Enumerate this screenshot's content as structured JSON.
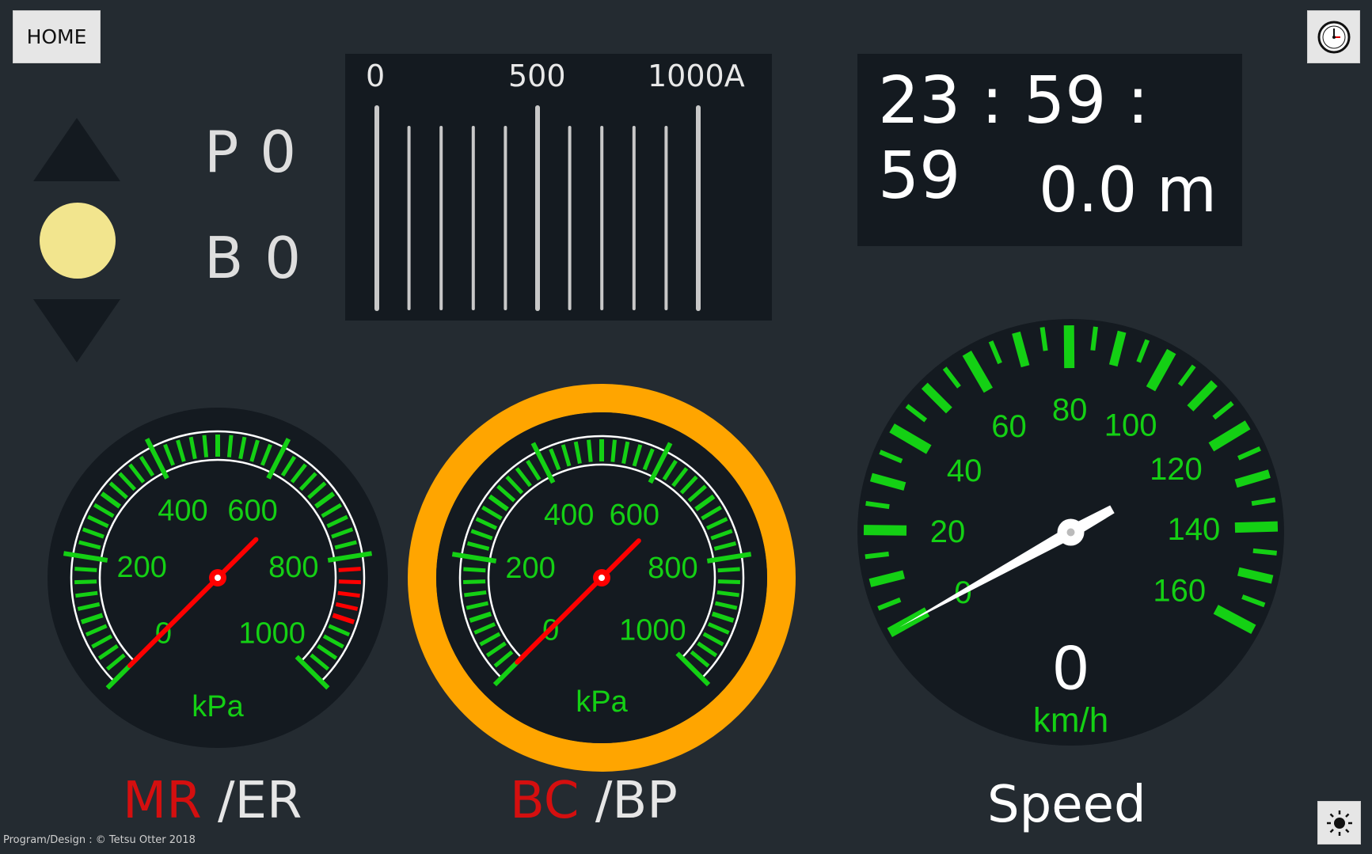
{
  "header": {
    "home_label": "HOME"
  },
  "notch": {
    "power": "P 0",
    "brake": "B 0"
  },
  "ammeter": {
    "labels": [
      "0",
      "500",
      "1000A"
    ],
    "current_value": 0
  },
  "clock": {
    "time": "23 : 59 : 59",
    "distance": "0.0 m"
  },
  "gauges": {
    "mr": {
      "ticks": [
        "0",
        "200",
        "400",
        "600",
        "800",
        "1000"
      ],
      "unit": "kPa",
      "title_red": "MR",
      "title_rest": " /ER",
      "needle_value": 0
    },
    "bc": {
      "ticks": [
        "0",
        "200",
        "400",
        "600",
        "800",
        "1000"
      ],
      "unit": "kPa",
      "title_red": "BC",
      "title_rest": " /BP",
      "needle_value": 0
    },
    "speed": {
      "ticks": [
        "0",
        "20",
        "40",
        "60",
        "80",
        "100",
        "120",
        "140",
        "160"
      ],
      "unit": "km/h",
      "value": "0",
      "title": "Speed"
    }
  },
  "footer": {
    "credit": "Program/Design : © Tetsu Otter 2018"
  },
  "colors": {
    "green": "#14d014",
    "red": "#ff0000",
    "orange": "#ffa500",
    "needle_white": "#ffffff",
    "lamp": "#f2e58e"
  },
  "icons": {
    "clock": "clock-icon",
    "brightness": "sun-icon",
    "up": "triangle-up-icon",
    "down": "triangle-down-icon"
  }
}
